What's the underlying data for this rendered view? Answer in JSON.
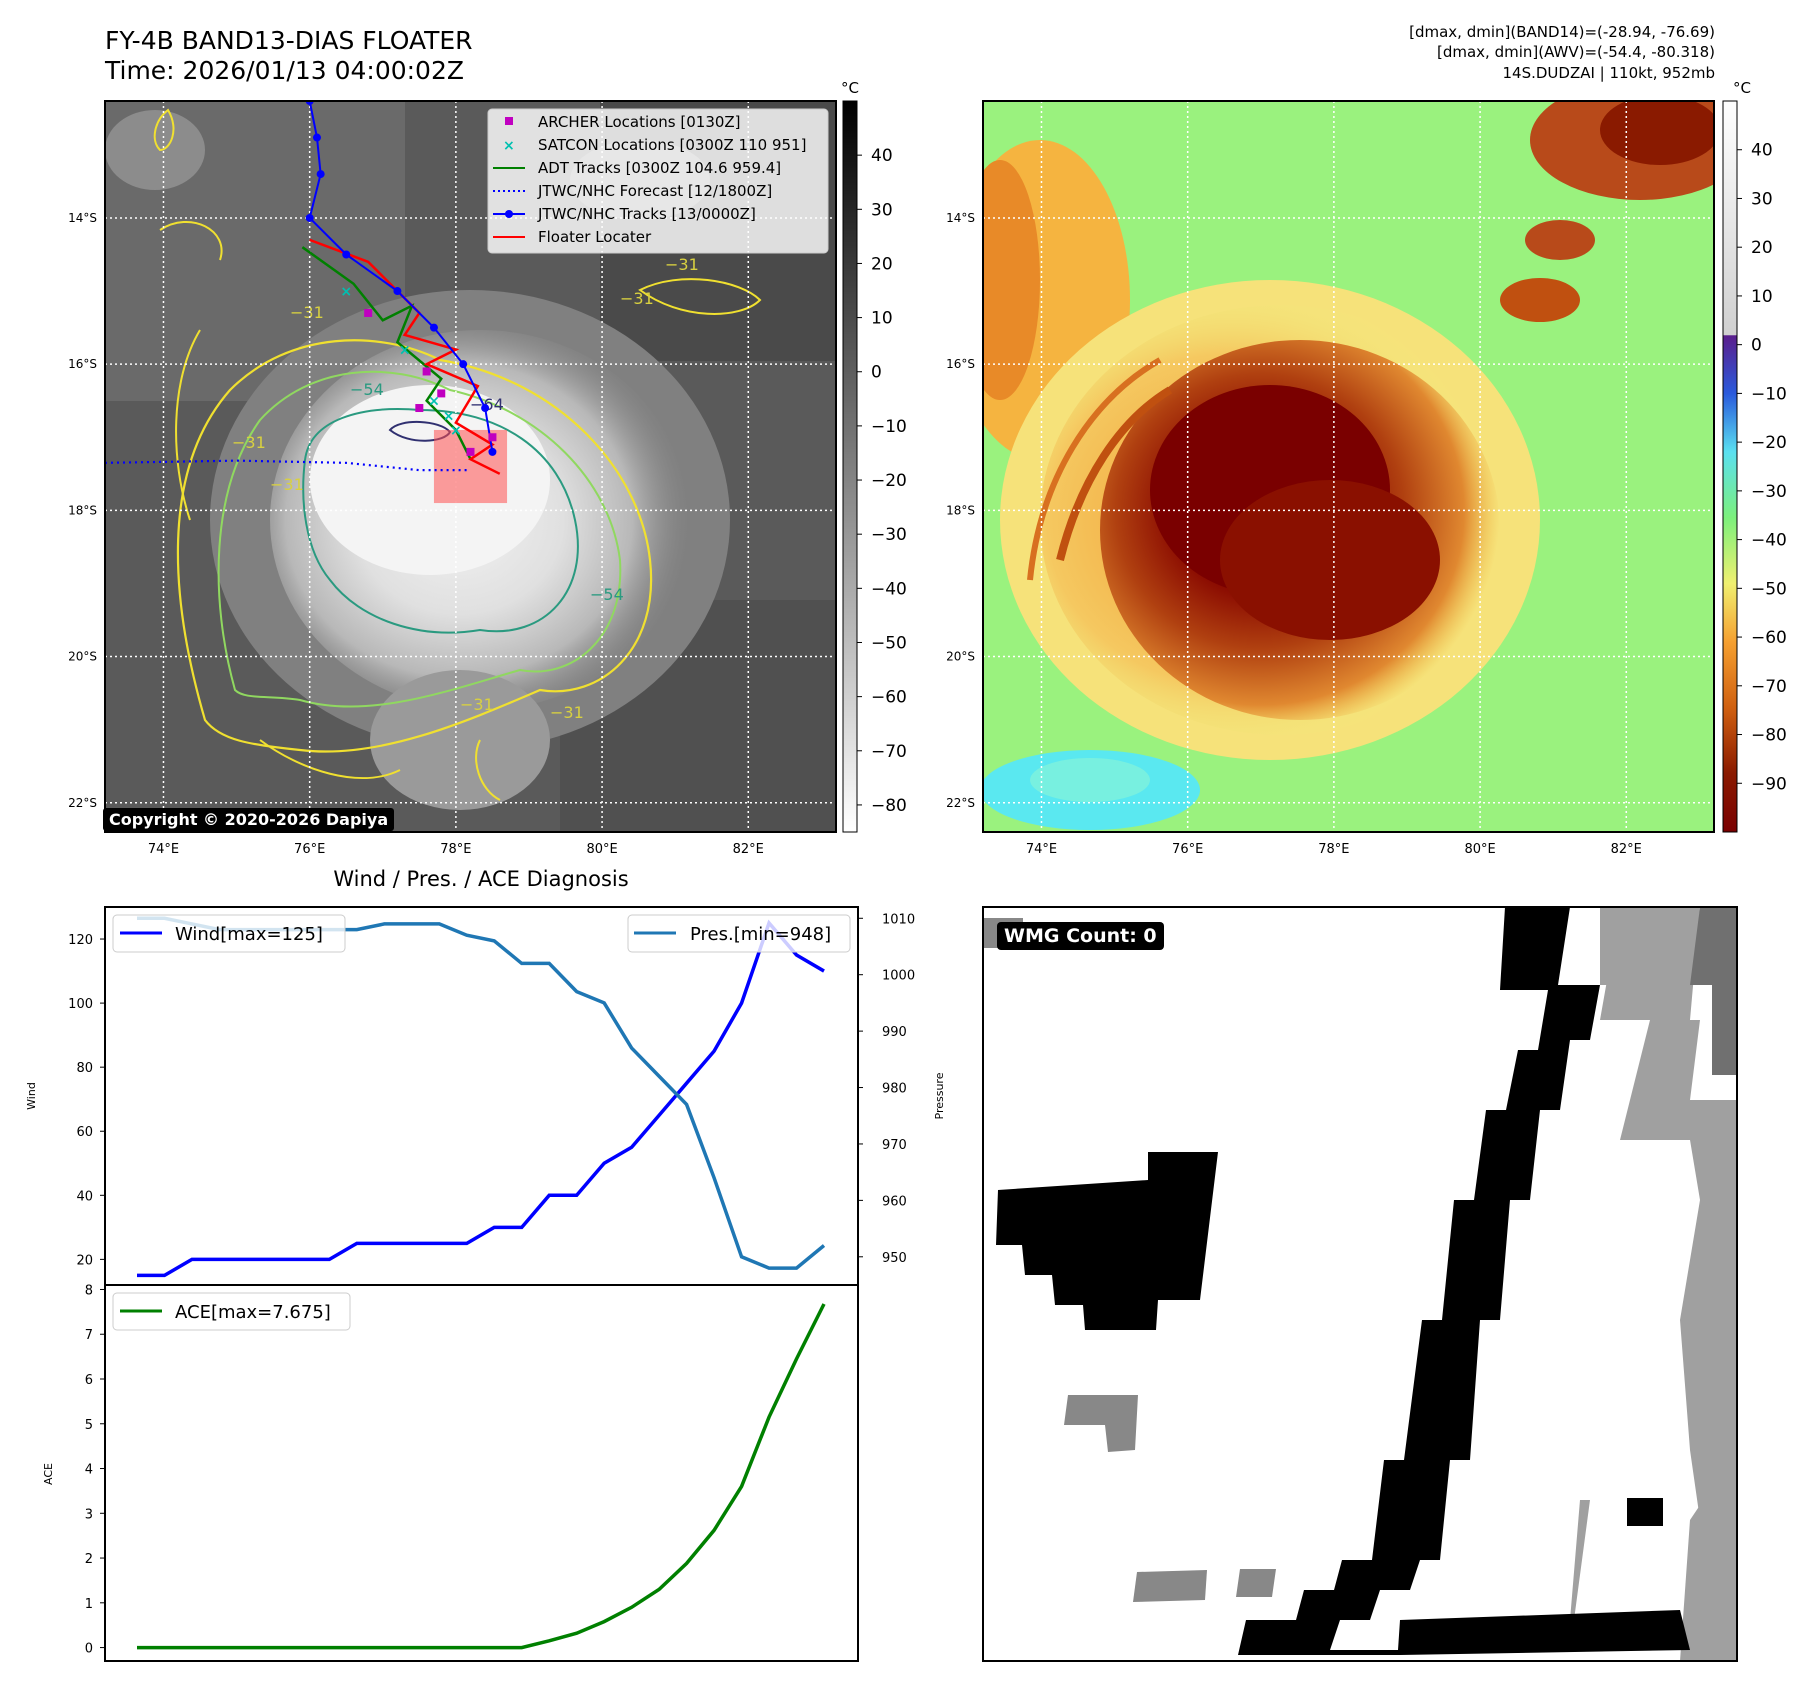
{
  "header": {
    "title_line1": "FY-4B BAND13-DIAS FLOATER",
    "title_line2": "Time: 2026/01/13 04:00:02Z",
    "meta_line1": "[dmax, dmin](BAND14)=(-28.94, -76.69)",
    "meta_line2": "[dmax, dmin](AWV)=(-54.4, -80.318)",
    "meta_line3": "14S.DUDZAI | 110kt, 952mb"
  },
  "colors": {
    "wind": "#0000ff",
    "pressure": "#1f77b4",
    "ace": "#008000",
    "archer": "#c000c0",
    "satcon": "#00c0b0",
    "adt": "#008000",
    "jtwc_forecast": "#0000ff",
    "jtwc_track": "#0000ff",
    "floater": "#ff0000",
    "contour_31": "#f0e030",
    "contour_54": "#2a9a80",
    "contour_64": "#303070"
  },
  "icons": {
    "archer_marker": "square-marker",
    "satcon_marker": "x-marker",
    "wind_line": "line-marker"
  },
  "chart_data": [
    {
      "type": "heatmap",
      "name": "ir-grayscale-map",
      "title": "",
      "x_ticks": [
        "74°E",
        "76°E",
        "78°E",
        "80°E",
        "82°E"
      ],
      "x_tick_values": [
        74,
        76,
        78,
        80,
        82
      ],
      "y_ticks": [
        "14°S",
        "16°S",
        "18°S",
        "20°S",
        "22°S"
      ],
      "y_tick_values": [
        -14,
        -16,
        -18,
        -20,
        -22
      ],
      "xlim": [
        73.2,
        83.2
      ],
      "ylim": [
        -22.4,
        -12.4
      ],
      "colorbar": {
        "unit": "°C",
        "ticks": [
          "40",
          "30",
          "20",
          "10",
          "0",
          "−10",
          "−20",
          "−30",
          "−40",
          "−50",
          "−60",
          "−70",
          "−80"
        ],
        "tick_values": [
          40,
          30,
          20,
          10,
          0,
          -10,
          -20,
          -30,
          -40,
          -50,
          -60,
          -70,
          -80
        ],
        "range": [
          -85,
          50
        ]
      },
      "contour_labels": [
        "−31",
        "−31",
        "−31",
        "−31",
        "−31",
        "−31",
        "−54",
        "−54",
        "−64",
        "−31"
      ],
      "legend": {
        "placement": "top-right",
        "entries": [
          "ARCHER Locations [0130Z]",
          "SATCON Locations [0300Z 110 951]",
          "ADT Tracks [0300Z 104.6 959.4]",
          "JTWC/NHC Forecast [12/1800Z]",
          "JTWC/NHC Tracks [13/0000Z]",
          "Floater Locater"
        ]
      },
      "jtwc_track": [
        [
          76.0,
          -12.4
        ],
        [
          76.1,
          -12.9
        ],
        [
          76.15,
          -13.4
        ],
        [
          76.0,
          -14.0
        ],
        [
          76.5,
          -14.5
        ],
        [
          77.2,
          -15.0
        ],
        [
          77.7,
          -15.5
        ],
        [
          78.1,
          -16.0
        ],
        [
          78.4,
          -16.6
        ],
        [
          78.5,
          -17.2
        ]
      ],
      "jtwc_forecast": [
        [
          73.2,
          -17.35
        ],
        [
          75.0,
          -17.32
        ],
        [
          76.5,
          -17.35
        ],
        [
          77.5,
          -17.45
        ],
        [
          78.2,
          -17.45
        ]
      ],
      "floater_track": [
        [
          76.0,
          -14.3
        ],
        [
          76.8,
          -14.6
        ],
        [
          77.5,
          -15.3
        ],
        [
          77.3,
          -15.6
        ],
        [
          78.0,
          -15.8
        ],
        [
          77.6,
          -16.0
        ],
        [
          78.3,
          -16.3
        ],
        [
          78.0,
          -16.8
        ],
        [
          78.5,
          -17.1
        ],
        [
          78.2,
          -17.3
        ],
        [
          78.6,
          -17.5
        ]
      ],
      "adt_track": [
        [
          75.9,
          -14.4
        ],
        [
          76.6,
          -14.9
        ],
        [
          77.0,
          -15.4
        ],
        [
          77.4,
          -15.2
        ],
        [
          77.2,
          -15.7
        ],
        [
          77.8,
          -16.2
        ],
        [
          77.6,
          -16.5
        ],
        [
          78.0,
          -16.9
        ],
        [
          78.2,
          -17.3
        ]
      ],
      "archer_points": [
        [
          77.5,
          -16.6
        ],
        [
          77.8,
          -16.4
        ],
        [
          78.5,
          -17.0
        ],
        [
          77.6,
          -16.1
        ],
        [
          76.8,
          -15.3
        ],
        [
          78.2,
          -17.2
        ]
      ],
      "satcon_points": [
        [
          77.7,
          -16.5
        ],
        [
          77.9,
          -16.7
        ],
        [
          78.0,
          -16.9
        ],
        [
          76.5,
          -15.0
        ],
        [
          77.3,
          -15.8
        ]
      ],
      "floater_box": [
        77.7,
        -17.9,
        78.7,
        -16.9
      ],
      "copyright": "Copyright © 2020-2026 Dapiya"
    },
    {
      "type": "heatmap",
      "name": "enhanced-color-map",
      "x_ticks": [
        "74°E",
        "76°E",
        "78°E",
        "80°E",
        "82°E"
      ],
      "x_tick_values": [
        74,
        76,
        78,
        80,
        82
      ],
      "y_ticks": [
        "14°S",
        "16°S",
        "18°S",
        "20°S",
        "22°S"
      ],
      "y_tick_values": [
        -14,
        -16,
        -18,
        -20,
        -22
      ],
      "xlim": [
        73.2,
        83.2
      ],
      "ylim": [
        -22.4,
        -12.4
      ],
      "colorbar": {
        "unit": "°C",
        "ticks": [
          "40",
          "30",
          "20",
          "10",
          "0",
          "−10",
          "−20",
          "−30",
          "−40",
          "−50",
          "−60",
          "−70",
          "−80",
          "−90"
        ],
        "tick_values": [
          40,
          30,
          20,
          10,
          0,
          -10,
          -20,
          -30,
          -40,
          -50,
          -60,
          -70,
          -80,
          -90
        ],
        "range": [
          -100,
          50
        ]
      }
    },
    {
      "type": "line",
      "name": "wind-pressure-diagnosis",
      "title": "Wind / Pres. / ACE Diagnosis",
      "ylabel": "Wind",
      "ylabel_right": "Pressure",
      "ylim": [
        12,
        130
      ],
      "ylim_right": [
        945,
        1012
      ],
      "y_ticks": [
        "20",
        "40",
        "60",
        "80",
        "100",
        "120"
      ],
      "y_tick_values": [
        20,
        40,
        60,
        80,
        100,
        120
      ],
      "y_ticks_right": [
        "950",
        "960",
        "970",
        "980",
        "990",
        "1000",
        "1010"
      ],
      "y_tick_values_right": [
        950,
        960,
        970,
        980,
        990,
        1000,
        1010
      ],
      "series": [
        {
          "name": "Wind[max=125]",
          "values": [
            15,
            15,
            20,
            20,
            20,
            20,
            20,
            20,
            25,
            25,
            25,
            25,
            25,
            30,
            30,
            40,
            40,
            50,
            55,
            65,
            75,
            85,
            100,
            125,
            115,
            110
          ]
        },
        {
          "name": "Pres.[min=948]",
          "values": [
            1010,
            1010,
            1009,
            1008,
            1008,
            1008,
            1008,
            1008,
            1008,
            1009,
            1009,
            1009,
            1007,
            1006,
            1002,
            1002,
            997,
            995,
            987,
            982,
            977,
            964,
            950,
            948,
            948,
            952
          ]
        }
      ]
    },
    {
      "type": "line",
      "name": "ace-diagnosis",
      "ylabel": "ACE",
      "ylim": [
        -0.3,
        8.1
      ],
      "y_ticks": [
        "0",
        "1",
        "2",
        "3",
        "4",
        "5",
        "6",
        "7",
        "8"
      ],
      "y_tick_values": [
        0,
        1,
        2,
        3,
        4,
        5,
        6,
        7,
        8
      ],
      "series": [
        {
          "name": "ACE[max=7.675]",
          "values": [
            0,
            0,
            0,
            0,
            0,
            0,
            0,
            0,
            0,
            0,
            0,
            0,
            0,
            0,
            0,
            0.15,
            0.32,
            0.58,
            0.9,
            1.3,
            1.88,
            2.62,
            3.6,
            5.15,
            6.45,
            7.675
          ]
        }
      ]
    }
  ],
  "wmg": {
    "label": "WMG Count: 0"
  }
}
